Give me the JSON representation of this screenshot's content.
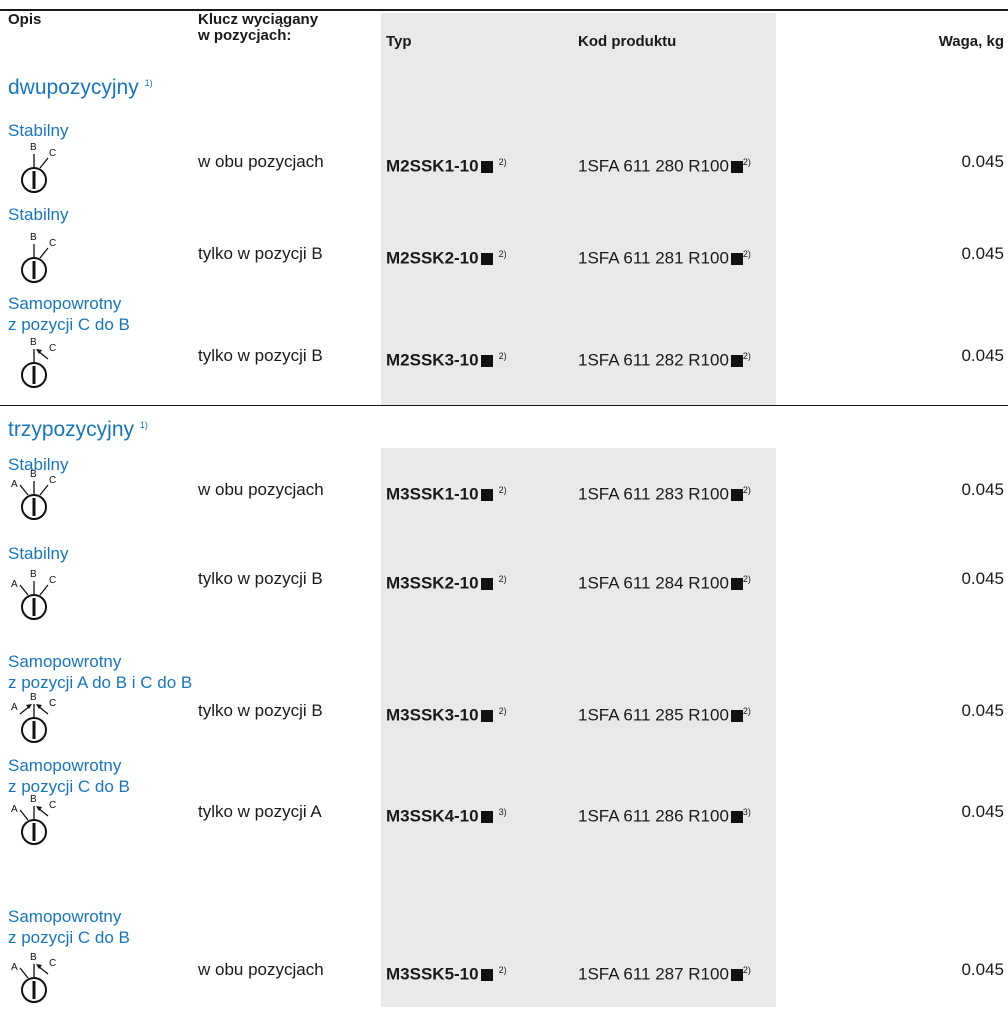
{
  "header": {
    "opis": "Opis",
    "klucz_line1": "Klucz wyciągany",
    "klucz_line2": "w pozycjach:",
    "typ": "Typ",
    "kod": "Kod produktu",
    "waga": "Waga, kg"
  },
  "sections": [
    {
      "title": "dwupozycyjny",
      "note": "1)"
    },
    {
      "title": "trzypozycyjny",
      "note": "1)"
    }
  ],
  "rows": [
    {
      "desc1": "Stabilny",
      "desc2": "",
      "key": "w obu pozycjach",
      "typ": "M2SSK1-10",
      "typ_note": "2)",
      "kod": "1SFA 611 280 R100",
      "kod_note": "2)",
      "waga": "0.045",
      "symbol_icon": "selector-2pos-stay-icon"
    },
    {
      "desc1": "Stabilny",
      "desc2": "",
      "key": "tylko w pozycji B",
      "typ": "M2SSK2-10",
      "typ_note": "2)",
      "kod": "1SFA 611 281 R100",
      "kod_note": "2)",
      "waga": "0.045",
      "symbol_icon": "selector-2pos-stay-icon"
    },
    {
      "desc1": "Samopowrotny",
      "desc2": "z pozycji C do  B",
      "key": "tylko w pozycji B",
      "typ": "M2SSK3-10",
      "typ_note": "2)",
      "kod": "1SFA 611 282 R100",
      "kod_note": "2)",
      "waga": "0.045",
      "symbol_icon": "selector-2pos-return-icon"
    },
    {
      "desc1": "Stabilny",
      "desc2": "",
      "key": "w obu pozycjach",
      "typ": "M3SSK1-10",
      "typ_note": "2)",
      "kod": "1SFA 611 283 R100",
      "kod_note": "2)",
      "waga": "0.045",
      "symbol_icon": "selector-3pos-stay-icon"
    },
    {
      "desc1": "Stabilny",
      "desc2": "",
      "key": "tylko w pozycji B",
      "typ": "M3SSK2-10",
      "typ_note": "2)",
      "kod": "1SFA 611 284 R100",
      "kod_note": "2)",
      "waga": "0.045",
      "symbol_icon": "selector-3pos-stay-icon"
    },
    {
      "desc1": "Samopowrotny",
      "desc2": "z pozycji A do  B i C do B",
      "key": "tylko w pozycji B",
      "typ": "M3SSK3-10",
      "typ_note": "2)",
      "kod": "1SFA 611 285 R100",
      "kod_note": "2)",
      "waga": "0.045",
      "symbol_icon": "selector-3pos-return-both-icon"
    },
    {
      "desc1": "Samopowrotny",
      "desc2": "z pozycji C do  B",
      "key": "tylko w pozycji A",
      "typ": "M3SSK4-10",
      "typ_note": "3)",
      "kod": "1SFA 611 286 R100",
      "kod_note": "3)",
      "waga": "0.045",
      "symbol_icon": "selector-3pos-return-c-icon"
    },
    {
      "desc1": "Samopowrotny",
      "desc2": "z pozycji C do  B",
      "key": "w obu pozycjach",
      "typ": "M3SSK5-10",
      "typ_note": "2)",
      "kod": "1SFA 611 287 R100",
      "kod_note": "2)",
      "waga": "0.045",
      "symbol_icon": "selector-3pos-return-c-icon"
    }
  ],
  "colors": {
    "accent_blue": "#1a76b8",
    "shade_grey": "#e9e9e9",
    "text": "#1a1a1a"
  }
}
